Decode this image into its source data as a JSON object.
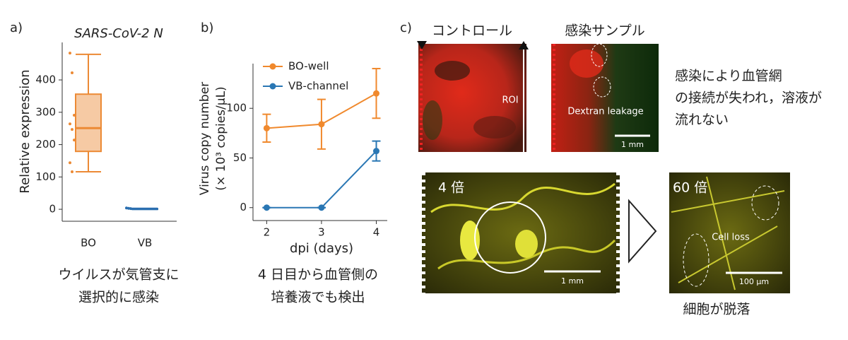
{
  "chart_data": [
    {
      "type": "box",
      "title": "SARS-CoV-2 N",
      "ylabel": "Relative expression",
      "categories": [
        "BO",
        "VB"
      ],
      "boxes": [
        {
          "min": 116,
          "q1": 179,
          "median": 251,
          "q3": 356,
          "max": 479,
          "points": [
            483,
            422,
            291,
            264,
            247,
            214,
            144,
            116
          ],
          "color": "#ec8a35"
        },
        {
          "min": 0,
          "q1": 0,
          "median": 1,
          "q3": 2,
          "max": 3,
          "points": [
            4,
            3,
            2
          ],
          "color": "#2a6fb0"
        }
      ],
      "ylim": [
        -37,
        516
      ],
      "yticks": [
        0,
        100,
        200,
        300,
        400
      ]
    },
    {
      "type": "line",
      "ylabel": [
        "Virus copy number",
        "(× 10³ copies/μL)"
      ],
      "xlabel": "dpi (days)",
      "x": [
        2,
        3,
        4
      ],
      "series": [
        {
          "name": "BO-well",
          "color": "#f0892d",
          "values": [
            80,
            84,
            115
          ],
          "errors": [
            14,
            25,
            25
          ]
        },
        {
          "name": "VB-channel",
          "color": "#2a77b4",
          "values": [
            0,
            0,
            57
          ],
          "errors": [
            0,
            0,
            10
          ]
        }
      ],
      "xlim": [
        1.75,
        4.2
      ],
      "ylim": [
        -13,
        145
      ],
      "xticks": [
        2,
        3,
        4
      ],
      "yticks": [
        0,
        50,
        100
      ]
    }
  ],
  "panel_labels": [
    "a)",
    "b)",
    "c)"
  ],
  "captions": {
    "a": [
      "ウイルスが気管支に",
      "選択的に感染"
    ],
    "b": [
      "4 日目から血管側の",
      "培養液でも検出"
    ]
  },
  "panel_c": {
    "control_title": "コントロール",
    "infected_title": "感染サンプル",
    "roi": "ROI",
    "leakage": "Dextran leakage",
    "scale_top": "1 mm",
    "note": [
      "感染により血管網",
      "の接続が失われ，溶液が",
      "流れない"
    ],
    "mag_low": "4 倍",
    "scale_low": "1 mm",
    "mag_high": "60 倍",
    "cell_loss": "Cell loss",
    "scale_high": "100 µm",
    "caption_high": "細胞が脱落"
  }
}
